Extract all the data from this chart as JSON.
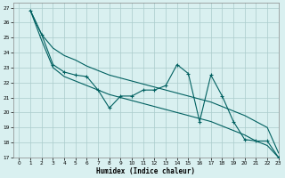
{
  "xlabel": "Humidex (Indice chaleur)",
  "xlim": [
    -0.5,
    23
  ],
  "ylim": [
    17,
    27.3
  ],
  "yticks": [
    17,
    18,
    19,
    20,
    21,
    22,
    23,
    24,
    25,
    26,
    27
  ],
  "xticks": [
    0,
    1,
    2,
    3,
    4,
    5,
    6,
    7,
    8,
    9,
    10,
    11,
    12,
    13,
    14,
    15,
    16,
    17,
    18,
    19,
    20,
    21,
    22,
    23
  ],
  "bg_color": "#d9f0f0",
  "grid_color": "#aacccc",
  "line_color": "#006060",
  "line_zigzag": [
    26.8,
    25.2,
    23.2,
    22.7,
    22.5,
    22.4,
    21.5,
    20.3,
    21.1,
    21.1,
    21.5,
    21.5,
    21.8,
    23.2,
    22.6,
    19.4,
    22.5,
    21.1,
    19.4,
    18.2,
    18.1,
    18.1,
    17.0
  ],
  "line_upper": [
    26.8,
    25.2,
    24.3,
    23.8,
    23.5,
    23.1,
    22.8,
    22.5,
    22.3,
    22.1,
    21.9,
    21.7,
    21.5,
    21.3,
    21.1,
    20.9,
    20.7,
    20.4,
    20.1,
    19.8,
    19.4,
    19.0,
    17.3
  ],
  "line_lower": [
    26.8,
    24.8,
    23.0,
    22.4,
    22.1,
    21.8,
    21.5,
    21.2,
    21.0,
    20.8,
    20.6,
    20.4,
    20.2,
    20.0,
    19.8,
    19.6,
    19.4,
    19.1,
    18.8,
    18.5,
    18.1,
    17.8,
    17.0
  ]
}
